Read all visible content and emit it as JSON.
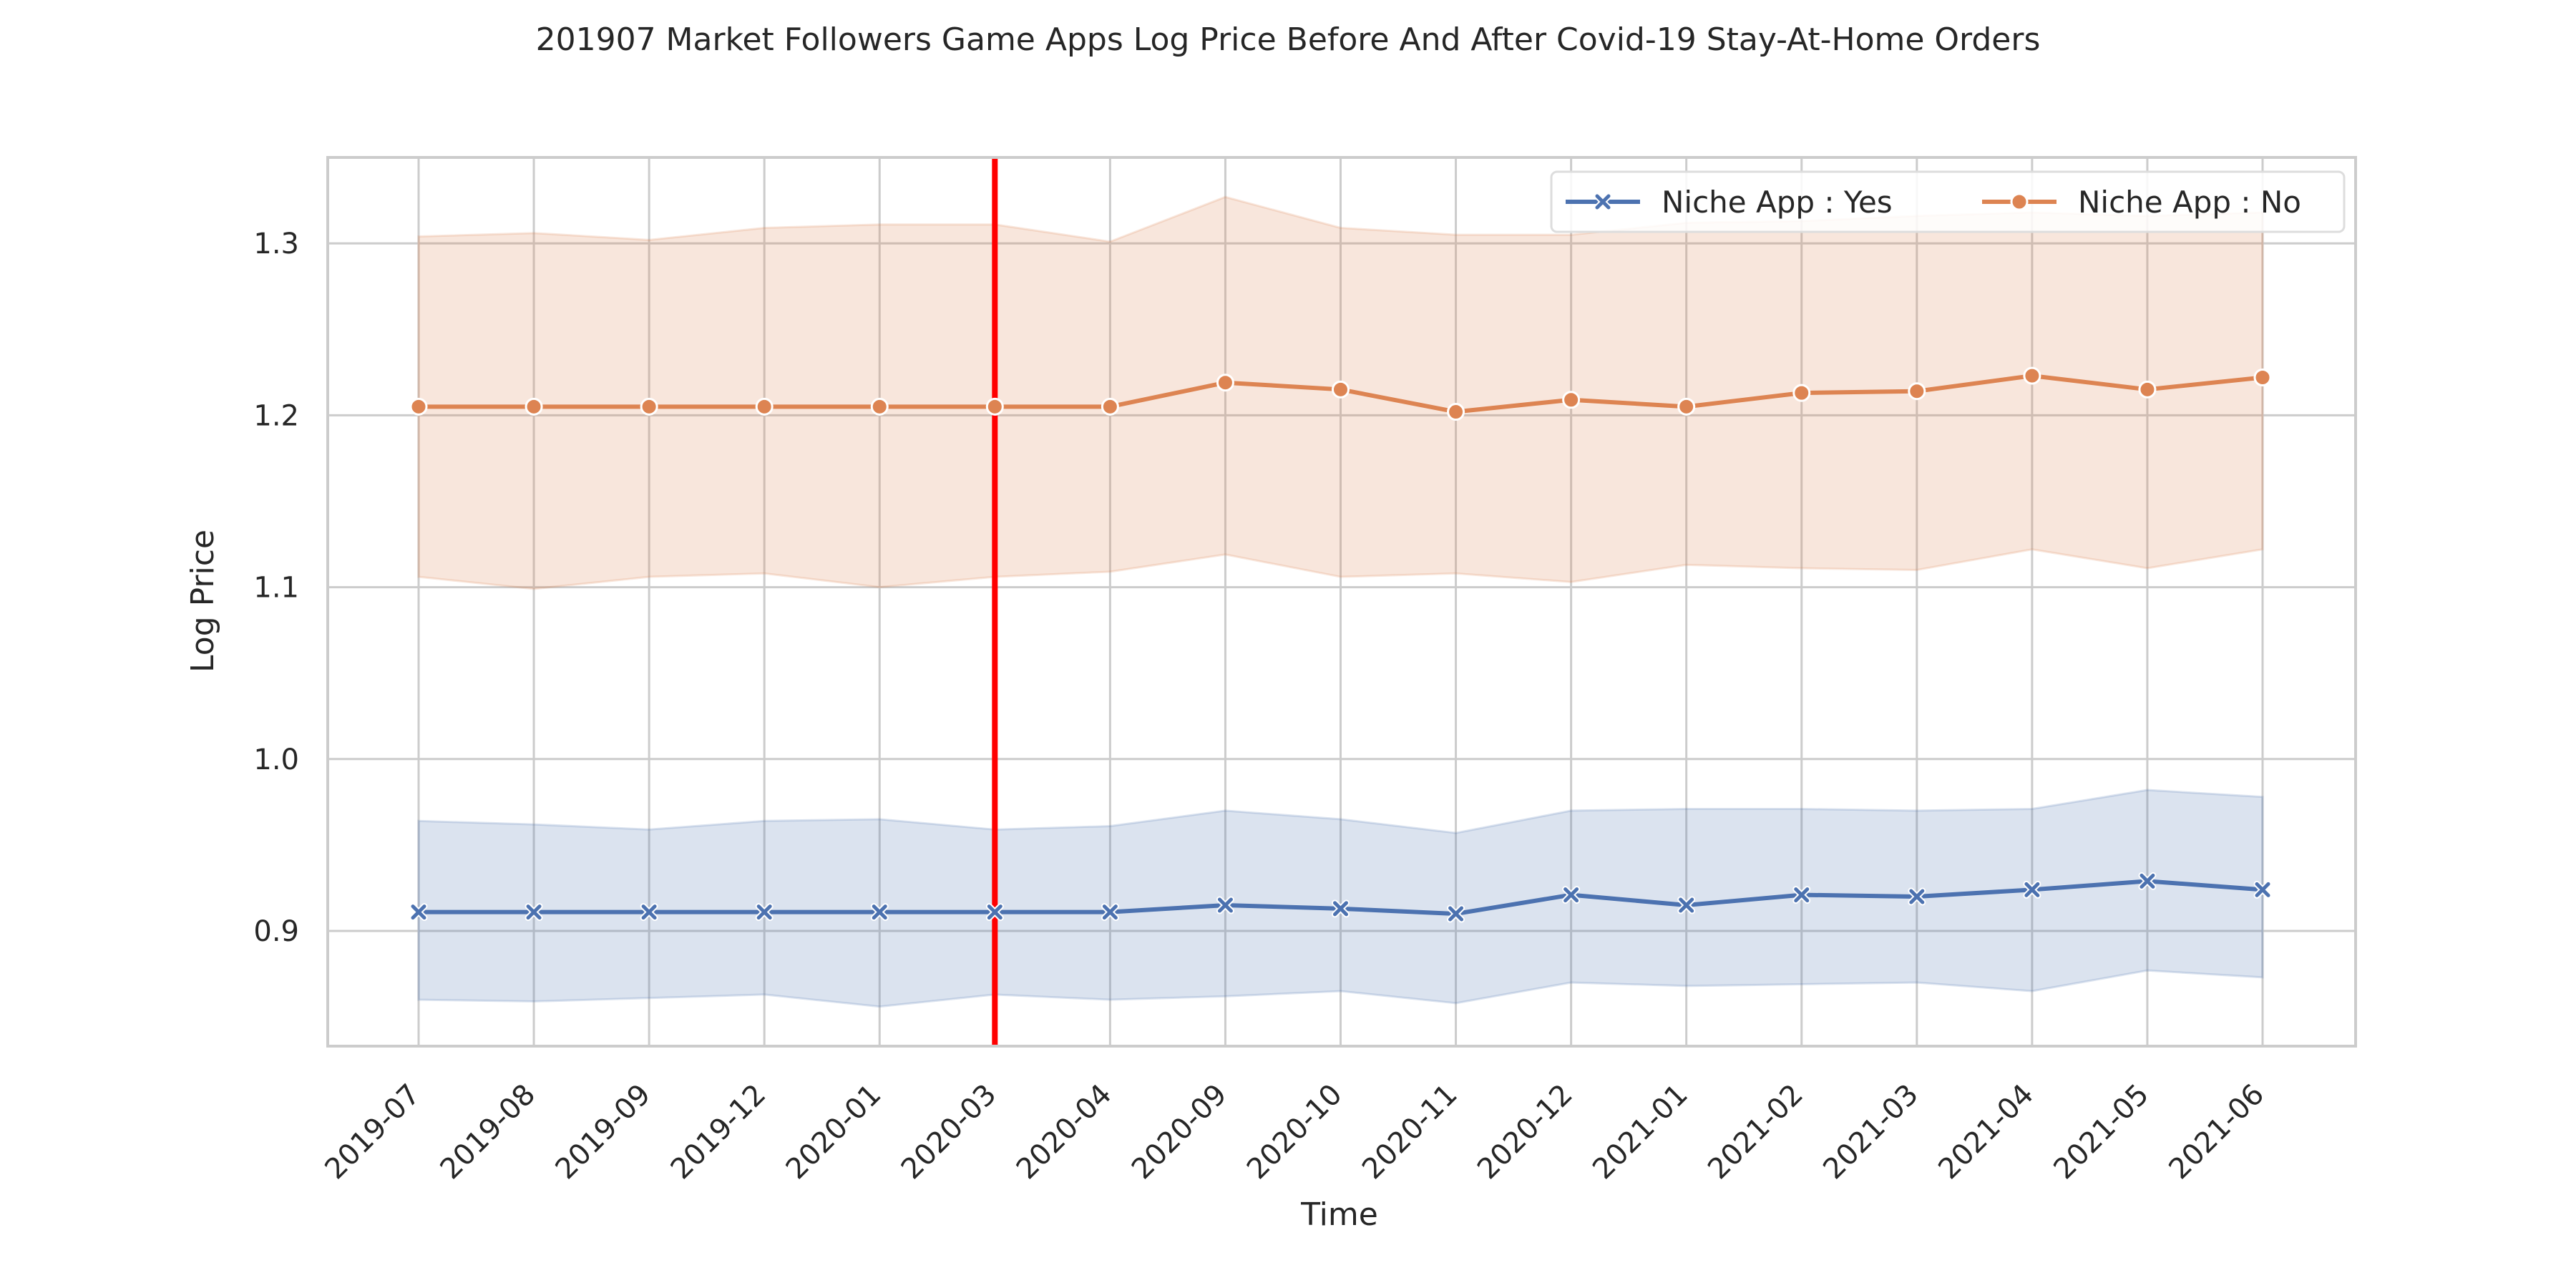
{
  "chart_data": {
    "type": "line",
    "title": "201907 Market Followers Game Apps Log Price Before And After Covid-19 Stay-At-Home Orders",
    "xlabel": "Time",
    "ylabel": "Log Price",
    "categories": [
      "2019-07",
      "2019-08",
      "2019-09",
      "2019-12",
      "2020-01",
      "2020-03",
      "2020-04",
      "2020-09",
      "2020-10",
      "2020-11",
      "2020-12",
      "2021-01",
      "2021-02",
      "2021-03",
      "2021-04",
      "2021-05",
      "2021-06"
    ],
    "yticks": [
      "0.9",
      "1.0",
      "1.1",
      "1.2",
      "1.3"
    ],
    "ylim": [
      0.833,
      1.35
    ],
    "grid": true,
    "legend_position": "top-right",
    "vertical_marker": {
      "category": "2020-03",
      "color": "#ff0000"
    },
    "series": [
      {
        "name": "Niche App : Yes",
        "color": "#4c72b0",
        "marker": "x",
        "values": [
          0.911,
          0.911,
          0.911,
          0.911,
          0.911,
          0.911,
          0.911,
          0.915,
          0.913,
          0.91,
          0.921,
          0.915,
          0.921,
          0.92,
          0.924,
          0.929,
          0.924
        ],
        "ci_low": [
          0.86,
          0.859,
          0.861,
          0.863,
          0.856,
          0.863,
          0.86,
          0.862,
          0.865,
          0.858,
          0.87,
          0.868,
          0.869,
          0.87,
          0.865,
          0.877,
          0.873
        ],
        "ci_high": [
          0.964,
          0.962,
          0.959,
          0.964,
          0.965,
          0.959,
          0.961,
          0.97,
          0.965,
          0.957,
          0.97,
          0.971,
          0.971,
          0.97,
          0.971,
          0.982,
          0.978
        ]
      },
      {
        "name": "Niche App : No",
        "color": "#dd8452",
        "marker": "o",
        "values": [
          1.205,
          1.205,
          1.205,
          1.205,
          1.205,
          1.205,
          1.205,
          1.219,
          1.215,
          1.202,
          1.209,
          1.205,
          1.213,
          1.214,
          1.223,
          1.215,
          1.222
        ],
        "ci_low": [
          1.106,
          1.099,
          1.106,
          1.108,
          1.1,
          1.106,
          1.109,
          1.119,
          1.106,
          1.108,
          1.103,
          1.113,
          1.111,
          1.11,
          1.122,
          1.111,
          1.122
        ],
        "ci_high": [
          1.304,
          1.306,
          1.302,
          1.309,
          1.311,
          1.311,
          1.301,
          1.327,
          1.309,
          1.305,
          1.305,
          1.312,
          1.313,
          1.316,
          1.318,
          1.316,
          1.318
        ]
      }
    ]
  }
}
